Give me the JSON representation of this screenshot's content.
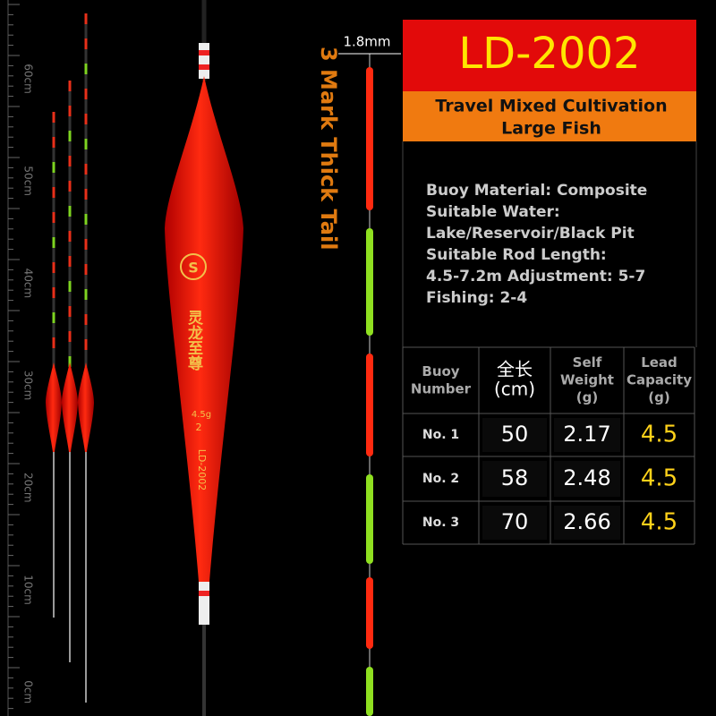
{
  "ruler": {
    "labels": [
      "60cm",
      "50cm",
      "40cm",
      "30cm",
      "20cm",
      "10cm",
      "0cm"
    ]
  },
  "float": {
    "brand_text": "灵龙至尊",
    "weight": "4.5g",
    "number": "2",
    "model": "LD-2002"
  },
  "tail": {
    "label": "3 Mark Thick Tail",
    "diameter": "1.8mm"
  },
  "header": {
    "title": "LD-2002",
    "subtitle": [
      "Travel Mixed Cultivation",
      "Large Fish"
    ]
  },
  "specs": [
    "Buoy Material: Composite",
    "Suitable Water:",
    "Lake/Reservoir/Black Pit",
    "Suitable Rod Length:",
    "4.5-7.2m Adjustment: 5-7",
    "Fishing: 2-4"
  ],
  "table": {
    "header": [
      [
        "Buoy",
        "Number"
      ],
      [
        "全长",
        "(cm)"
      ],
      [
        "Self",
        "Weight",
        "(g)"
      ],
      [
        "Lead",
        "Capacity",
        "(g)"
      ]
    ],
    "rows": [
      [
        "No. 1",
        50,
        2.17,
        4.5
      ],
      [
        "No. 2",
        58,
        2.48,
        4.5
      ],
      [
        "No. 3",
        70,
        2.66,
        4.5
      ]
    ]
  }
}
